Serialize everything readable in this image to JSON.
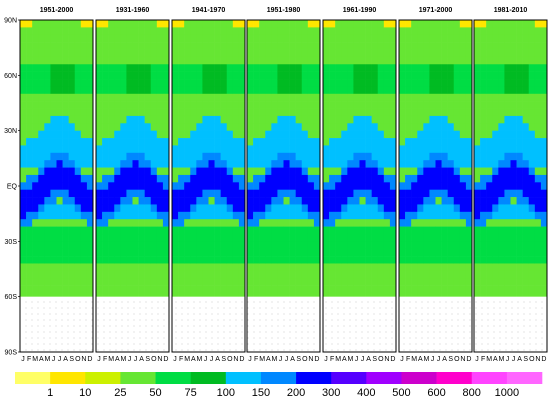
{
  "chart_data": {
    "type": "heatmap",
    "title": "",
    "xlabel": "",
    "ylabel": "",
    "panels": [
      {
        "title": "1951-2000"
      },
      {
        "title": "1931-1960"
      },
      {
        "title": "1941-1970"
      },
      {
        "title": "1951-1980"
      },
      {
        "title": "1961-1990"
      },
      {
        "title": "1971-2000"
      },
      {
        "title": "1981-2010"
      }
    ],
    "x_ticks": [
      "J",
      "F",
      "M",
      "A",
      "M",
      "J",
      "J",
      "A",
      "S",
      "O",
      "N",
      "D"
    ],
    "y_ticks": [
      {
        "label": "90N",
        "lat": 90
      },
      {
        "label": "60N",
        "lat": 60
      },
      {
        "label": "30N",
        "lat": 30
      },
      {
        "label": "EQ",
        "lat": 0
      },
      {
        "label": "30S",
        "lat": -30
      },
      {
        "label": "60S",
        "lat": -60
      },
      {
        "label": "90S",
        "lat": -90
      }
    ],
    "ylim": [
      -90,
      90
    ],
    "no_data_below_lat": -60,
    "levels": [
      "1",
      "10",
      "25",
      "50",
      "75",
      "100",
      "150",
      "200",
      "300",
      "400",
      "500",
      "600",
      "800",
      "1000"
    ],
    "colors": [
      "#ffff66",
      "#ffe600",
      "#ccf000",
      "#66e633",
      "#00dd44",
      "#00bb22",
      "#00c0ff",
      "#0088ff",
      "#0000ff",
      "#5500ff",
      "#a000ff",
      "#cc00cc",
      "#ff00cc",
      "#ff44ff",
      "#ff66ff"
    ],
    "colorbar_position": "bottom",
    "stipple_no_data": true,
    "legend": "colorbar"
  }
}
